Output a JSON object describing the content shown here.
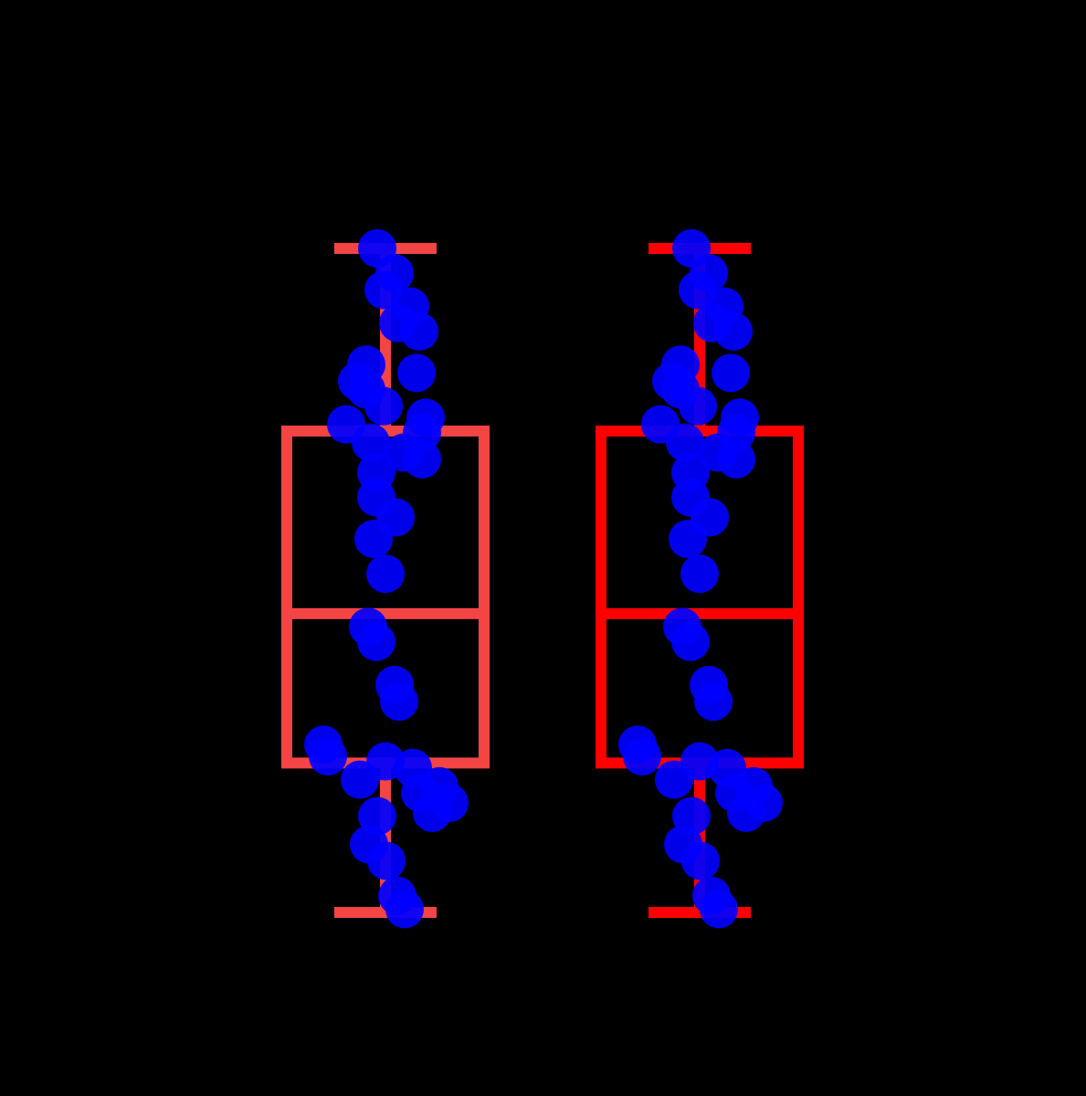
{
  "chart_data": {
    "type": "box",
    "title": "",
    "xlabel": "",
    "ylabel": "",
    "ylim": [
      0,
      40
    ],
    "grid": false,
    "legend": "none",
    "boxes": [
      {
        "stats": {
          "whisker_low": 0,
          "q1": 9,
          "median": 18,
          "q3": 29,
          "whisker_high": 40
        },
        "box_color": "#f44444",
        "points": [
          40,
          38.5,
          37.5,
          36.5,
          35.5,
          35,
          33,
          32.5,
          32,
          31.5,
          30.5,
          29.8,
          29.4,
          28.9,
          28.3,
          27.7,
          27.3,
          26.5,
          25,
          23.8,
          22.5,
          20.4,
          17.2,
          16.3,
          13.7,
          12.7,
          10.1,
          9.4,
          9.1,
          8.7,
          8,
          7.6,
          7.2,
          6.6,
          6,
          5.8,
          4.1,
          3.1,
          1,
          0.2
        ]
      },
      {
        "stats": {
          "whisker_low": 0,
          "q1": 9,
          "median": 18,
          "q3": 29,
          "whisker_high": 40
        },
        "box_color": "#ff0000",
        "points": [
          40,
          38.5,
          37.5,
          36.5,
          35.5,
          35,
          33,
          32.5,
          32,
          31.5,
          30.5,
          29.8,
          29.4,
          28.9,
          28.3,
          27.7,
          27.3,
          26.5,
          25,
          23.8,
          22.5,
          20.4,
          17.2,
          16.3,
          13.7,
          12.7,
          10.1,
          9.4,
          9.1,
          8.7,
          8,
          7.6,
          7.2,
          6.6,
          6,
          5.8,
          4.1,
          3.1,
          1,
          0.2
        ]
      }
    ],
    "point_color": "#0000ff"
  }
}
